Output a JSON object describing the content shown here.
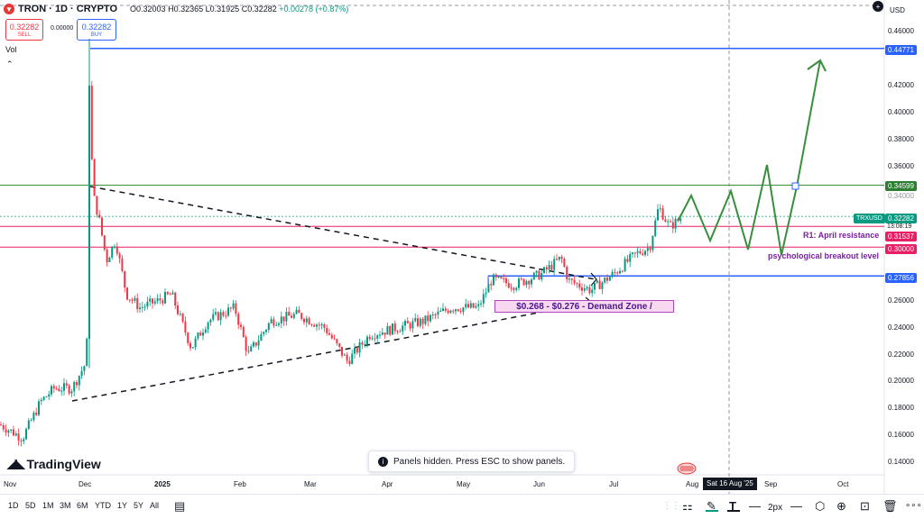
{
  "header": {
    "symbol": "TRON · 1D · CRYPTO",
    "ohlc_open": "O0.32003",
    "ohlc_high": "H0.32365",
    "ohlc_low": "L0.31925",
    "ohlc_close": "C0.32282",
    "ohlc_change": "+0.00278 (+0.87%)",
    "sell_price": "0.32282",
    "sell_label": "SELL",
    "spread": "0.00000",
    "buy_price": "0.32282",
    "buy_label": "BUY",
    "volume_label": "Vol",
    "collapse_glyph": "⌃"
  },
  "price_axis": {
    "currency": "USD",
    "ticks": [
      "0.46000",
      "0.42000",
      "0.40000",
      "0.38000",
      "0.36000",
      "0.26000",
      "0.24000",
      "0.22000",
      "0.20000",
      "0.18000",
      "0.16000",
      "0.14000"
    ],
    "tick_hidden_overlay": "0.34000",
    "labels": {
      "top_blue": "0.44771",
      "green_line": "0.34599",
      "current": "0.32282",
      "red_r1": "0.31537",
      "red_psych": "0.30000",
      "blue_support": "0.27856"
    },
    "symbol_tag": "TRXUSD",
    "countdown": "13:08:19"
  },
  "annotations": {
    "r1": "R1: April resistance",
    "psych": "psychological breakout level",
    "demand_zone": "$0.268 - $0.276 - Demand Zone /"
  },
  "time_axis": {
    "labels": [
      "Nov",
      "Dec",
      "2025",
      "Feb",
      "Mar",
      "Apr",
      "May",
      "Jun",
      "Jul",
      "Aug",
      "Sep",
      "Oct"
    ],
    "crosshair_date": "Sat 16 Aug '25"
  },
  "branding": {
    "name": "TradingView"
  },
  "toast": {
    "text": "Panels hidden. Press ESC to show panels."
  },
  "ranges": [
    "1D",
    "5D",
    "1M",
    "3M",
    "6M",
    "YTD",
    "1Y",
    "5Y",
    "All"
  ],
  "toolbar": {
    "stroke_width": "2px"
  },
  "colors": {
    "up": "#089981",
    "down": "#f23645",
    "resistance_blue": "#2962ff",
    "forecast_green": "#388e3c",
    "level_red": "#e91e63"
  }
}
